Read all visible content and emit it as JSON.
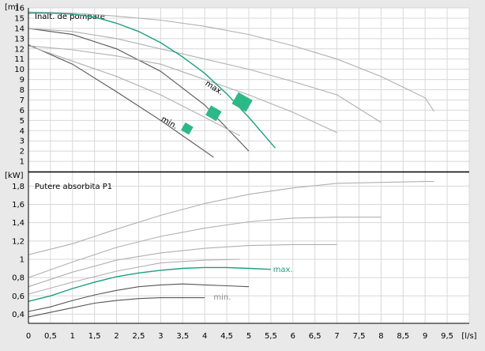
{
  "chart_data": [
    {
      "type": "line",
      "panel": "head",
      "title": "Inalt. de pompare",
      "ylabel": "[m]",
      "xlabel": "[l/s]",
      "xlim": [
        0,
        10
      ],
      "ylim": [
        0,
        16
      ],
      "yticks": [
        "1",
        "2",
        "3",
        "4",
        "5",
        "6",
        "7",
        "8",
        "9",
        "10",
        "11",
        "12",
        "13",
        "14",
        "15",
        "16"
      ],
      "grid": true,
      "series": [
        {
          "role": "highlight",
          "color": "#1aa080",
          "x": [
            0,
            0.5,
            1,
            1.5,
            2,
            2.5,
            3,
            3.5,
            4,
            4.5,
            5,
            5.5,
            5.6
          ],
          "y": [
            15.5,
            15.5,
            15.4,
            15.1,
            14.5,
            13.7,
            12.6,
            11.2,
            9.6,
            7.6,
            5.3,
            2.8,
            2.3
          ]
        },
        {
          "color": "#555555",
          "x": [
            0,
            1,
            2,
            3,
            4,
            5
          ],
          "y": [
            14,
            13.4,
            12,
            9.8,
            6.5,
            2.0
          ]
        },
        {
          "color": "#555555",
          "x": [
            0,
            1,
            2,
            3,
            4,
            4.2
          ],
          "y": [
            12.4,
            10.5,
            7.8,
            5.0,
            2.0,
            1.4
          ]
        },
        {
          "color": "#b0b0b0",
          "x": [
            0,
            1,
            2,
            3,
            4,
            5,
            6,
            7,
            8,
            9,
            9.2
          ],
          "y": [
            15.6,
            15.5,
            15.2,
            14.8,
            14.2,
            13.4,
            12.3,
            11.0,
            9.3,
            7.2,
            5.9
          ]
        },
        {
          "color": "#b0b0b0",
          "x": [
            0,
            1,
            2,
            3,
            4,
            5,
            6,
            7,
            8
          ],
          "y": [
            14,
            13.7,
            13.0,
            12.0,
            11.0,
            10.0,
            8.8,
            7.5,
            4.8
          ]
        },
        {
          "color": "#b0b0b0",
          "x": [
            0,
            1,
            2,
            3,
            4,
            5,
            6,
            7
          ],
          "y": [
            12.3,
            11.9,
            11.3,
            10.5,
            9.0,
            7.5,
            5.8,
            3.8
          ]
        },
        {
          "color": "#b0b0b0",
          "x": [
            0,
            1,
            2,
            3,
            4,
            4.8
          ],
          "y": [
            12.3,
            10.8,
            9.3,
            7.5,
            5.3,
            3.5
          ]
        }
      ],
      "annotations": [
        {
          "text": "max.",
          "x": 4.0,
          "y": 8.5,
          "rotate": 33
        },
        {
          "text": "min.",
          "x": 3.0,
          "y": 5.0,
          "rotate": 30
        }
      ],
      "markers": [
        {
          "x": 4.85,
          "y": 6.8,
          "w": 0.3,
          "h": 1.6,
          "rotate": 30
        },
        {
          "x": 4.2,
          "y": 5.7,
          "w": 0.25,
          "h": 1.2,
          "rotate": 30
        },
        {
          "x": 3.6,
          "y": 4.2,
          "w": 0.2,
          "h": 0.9,
          "rotate": 30
        }
      ],
      "marker_color": "#2db888"
    },
    {
      "type": "line",
      "panel": "power",
      "title": "Putere absorbita P1",
      "ylabel": "[kW]",
      "xlabel": "[l/s]",
      "xlim": [
        0,
        10
      ],
      "ylim": [
        0.3,
        1.95
      ],
      "yticks": [
        "0,4",
        "0,6",
        "0,8",
        "1",
        "1,2",
        "1,4",
        "1,6",
        "1,8"
      ],
      "ytickvalues": [
        0.4,
        0.6,
        0.8,
        1.0,
        1.2,
        1.4,
        1.6,
        1.8
      ],
      "xticks": [
        "0",
        "0,5",
        "1",
        "1,5",
        "2",
        "2,5",
        "3",
        "3,5",
        "4",
        "4,5",
        "5",
        "5,5",
        "6",
        "6,5",
        "7",
        "7,5",
        "8",
        "8,5",
        "9",
        "9,5",
        "[l/s]"
      ],
      "xtickvalues": [
        0,
        0.5,
        1,
        1.5,
        2,
        2.5,
        3,
        3.5,
        4,
        4.5,
        5,
        5.5,
        6,
        6.5,
        7,
        7.5,
        8,
        8.5,
        9,
        9.5,
        10
      ],
      "grid": true,
      "series": [
        {
          "role": "highlight",
          "color": "#1aa080",
          "x": [
            0,
            0.5,
            1,
            1.5,
            2,
            2.5,
            3,
            3.5,
            4,
            4.5,
            5,
            5.5
          ],
          "y": [
            0.54,
            0.6,
            0.68,
            0.75,
            0.81,
            0.85,
            0.88,
            0.9,
            0.91,
            0.91,
            0.9,
            0.89
          ]
        },
        {
          "color": "#555555",
          "x": [
            0,
            0.5,
            1,
            1.5,
            2,
            2.5,
            3,
            3.5,
            4,
            4.5,
            5
          ],
          "y": [
            0.43,
            0.48,
            0.55,
            0.61,
            0.66,
            0.7,
            0.72,
            0.73,
            0.72,
            0.71,
            0.7
          ]
        },
        {
          "color": "#555555",
          "x": [
            0,
            0.5,
            1,
            1.5,
            2,
            2.5,
            3,
            3.5,
            4
          ],
          "y": [
            0.37,
            0.42,
            0.47,
            0.52,
            0.55,
            0.57,
            0.58,
            0.58,
            0.58
          ]
        },
        {
          "color": "#b0b0b0",
          "x": [
            0,
            1,
            2,
            3,
            4,
            5,
            6,
            7,
            8,
            9,
            9.2
          ],
          "y": [
            1.05,
            1.17,
            1.33,
            1.48,
            1.61,
            1.71,
            1.78,
            1.83,
            1.84,
            1.85,
            1.85
          ]
        },
        {
          "color": "#b0b0b0",
          "x": [
            0,
            1,
            2,
            3,
            4,
            5,
            6,
            7,
            8
          ],
          "y": [
            0.8,
            0.97,
            1.13,
            1.25,
            1.34,
            1.41,
            1.45,
            1.46,
            1.46
          ]
        },
        {
          "color": "#b0b0b0",
          "x": [
            0,
            1,
            2,
            3,
            4,
            5,
            6,
            7
          ],
          "y": [
            0.7,
            0.86,
            0.99,
            1.07,
            1.12,
            1.15,
            1.16,
            1.16
          ]
        },
        {
          "color": "#b0b0b0",
          "x": [
            0,
            1,
            2,
            3,
            4,
            4.8
          ],
          "y": [
            0.62,
            0.75,
            0.87,
            0.96,
            0.99,
            1.0
          ]
        }
      ],
      "annotations": [
        {
          "text": "max.",
          "x": 5.55,
          "y": 0.86,
          "color": "#1aa080"
        },
        {
          "text": "min.",
          "x": 4.2,
          "y": 0.56,
          "color": "#888888"
        }
      ]
    }
  ]
}
